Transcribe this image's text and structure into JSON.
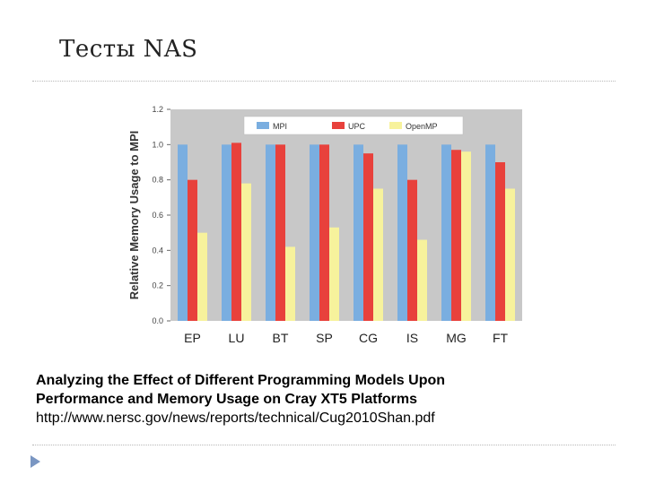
{
  "slide": {
    "title": "Тесты NAS"
  },
  "caption": {
    "line1": "Analyzing the Effect of Different Programming Models Upon",
    "line2": "Performance and Memory Usage on Cray XT5 Platforms",
    "url": "http://www.nersc.gov/news/reports/technical/Cug2010Shan.pdf"
  },
  "chart_data": {
    "type": "bar",
    "ylabel": "Relative Memory Usage to MPI",
    "xlabel": "",
    "ylim": [
      0,
      1.2
    ],
    "yticks": [
      "0.0",
      "0.2",
      "0.4",
      "0.6",
      "0.8",
      "1.0",
      "1.2"
    ],
    "grid": false,
    "legend_position": "top",
    "categories": [
      "EP",
      "LU",
      "BT",
      "SP",
      "CG",
      "IS",
      "MG",
      "FT"
    ],
    "series": [
      {
        "name": "MPI",
        "color": "#7aaee0",
        "values": [
          1.0,
          1.0,
          1.0,
          1.0,
          1.0,
          1.0,
          1.0,
          1.0
        ]
      },
      {
        "name": "UPC",
        "color": "#e8413c",
        "values": [
          0.8,
          1.01,
          1.0,
          1.0,
          0.95,
          0.8,
          0.97,
          0.9
        ]
      },
      {
        "name": "OpenMP",
        "color": "#f7f29c",
        "values": [
          0.5,
          0.78,
          0.42,
          0.53,
          0.75,
          0.46,
          0.96,
          0.75
        ]
      }
    ],
    "plot_background": "#c8c8c8"
  }
}
